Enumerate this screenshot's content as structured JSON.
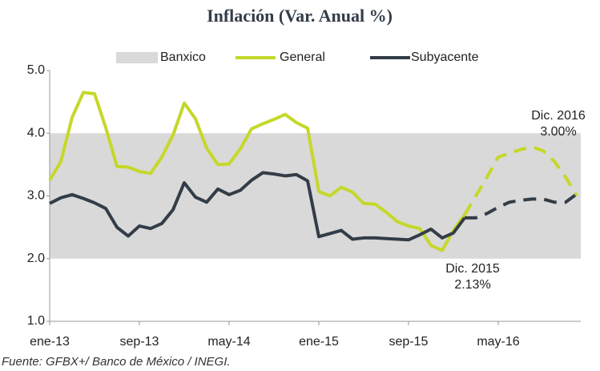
{
  "chart_data": {
    "type": "line",
    "title": "Inflación (Var. Anual %)",
    "source": "Fuente: GFBX+/ Banco de México / INEGI.",
    "categories": [
      "ene-13",
      null,
      null,
      null,
      null,
      null,
      null,
      null,
      "sep-13",
      null,
      null,
      null,
      null,
      null,
      null,
      null,
      "may-14",
      null,
      null,
      null,
      null,
      null,
      null,
      null,
      "ene-15",
      null,
      null,
      null,
      null,
      null,
      null,
      null,
      "sep-15",
      null,
      null,
      null,
      null,
      null,
      null,
      null,
      "may-16",
      null,
      null,
      null,
      null,
      null,
      null,
      null
    ],
    "ylim": [
      1,
      5
    ],
    "yticks": [
      {
        "value": 1,
        "label": "1.0"
      },
      {
        "value": 2,
        "label": "2.0"
      },
      {
        "value": 3,
        "label": "3.0"
      },
      {
        "value": 4,
        "label": "4.0"
      },
      {
        "value": 5,
        "label": "5.0"
      }
    ],
    "band": {
      "name": "Banxico",
      "range": [
        2,
        4
      ],
      "color": "#d9d9d9"
    },
    "series": [
      {
        "name": "General",
        "color": "#c5d82a",
        "dashed_from": 37,
        "values": [
          3.25,
          3.55,
          4.25,
          4.65,
          4.63,
          4.09,
          3.47,
          3.46,
          3.39,
          3.36,
          3.62,
          3.97,
          4.48,
          4.23,
          3.76,
          3.5,
          3.51,
          3.75,
          4.07,
          4.15,
          4.22,
          4.3,
          4.17,
          4.08,
          3.07,
          3.0,
          3.14,
          3.06,
          2.88,
          2.87,
          2.74,
          2.59,
          2.52,
          2.48,
          2.21,
          2.13,
          2.45,
          2.7,
          3.0,
          3.3,
          3.62,
          3.68,
          3.74,
          3.78,
          3.72,
          3.55,
          3.3,
          3.0
        ]
      },
      {
        "name": "Subyacente",
        "color": "#333d47",
        "dashed_from": 37,
        "values": [
          2.88,
          2.97,
          3.02,
          2.96,
          2.89,
          2.8,
          2.5,
          2.36,
          2.52,
          2.48,
          2.56,
          2.78,
          3.21,
          2.98,
          2.9,
          3.11,
          3.02,
          3.09,
          3.25,
          3.37,
          3.35,
          3.32,
          3.34,
          3.24,
          2.35,
          2.4,
          2.45,
          2.31,
          2.33,
          2.33,
          2.32,
          2.31,
          2.3,
          2.38,
          2.47,
          2.33,
          2.41,
          2.65,
          2.65,
          2.72,
          2.82,
          2.9,
          2.93,
          2.95,
          2.95,
          2.9,
          2.9,
          3.03
        ]
      }
    ],
    "annotations": [
      {
        "lines": [
          "Dic. 2015",
          "2.13%"
        ],
        "index": 35
      },
      {
        "lines": [
          "Dic. 2016",
          "3.00%"
        ],
        "index": 47
      }
    ]
  }
}
